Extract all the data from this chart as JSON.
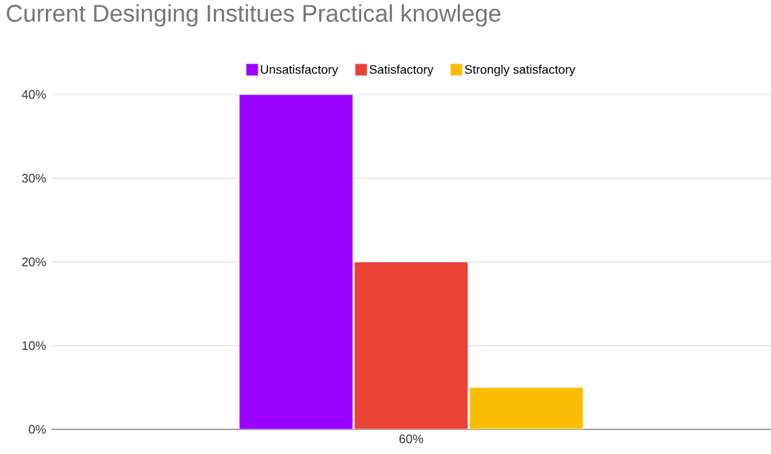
{
  "chart_data": {
    "type": "bar",
    "title": "Current Desinging Institues Practical knowlege",
    "categories": [
      "60%"
    ],
    "series": [
      {
        "name": "Unsatisfactory",
        "color": "#9900ff",
        "values": [
          40
        ]
      },
      {
        "name": "Satisfactory",
        "color": "#ea4335",
        "values": [
          20
        ]
      },
      {
        "name": "Strongly satisfactory",
        "color": "#fbbc04",
        "values": [
          5
        ]
      }
    ],
    "ylim": [
      0,
      40
    ],
    "yticks": [
      {
        "value": 0,
        "label": "0%"
      },
      {
        "value": 10,
        "label": "10%"
      },
      {
        "value": 20,
        "label": "20%"
      },
      {
        "value": 30,
        "label": "30%"
      },
      {
        "value": 40,
        "label": "40%"
      }
    ],
    "grid": "y",
    "legend": "top"
  }
}
